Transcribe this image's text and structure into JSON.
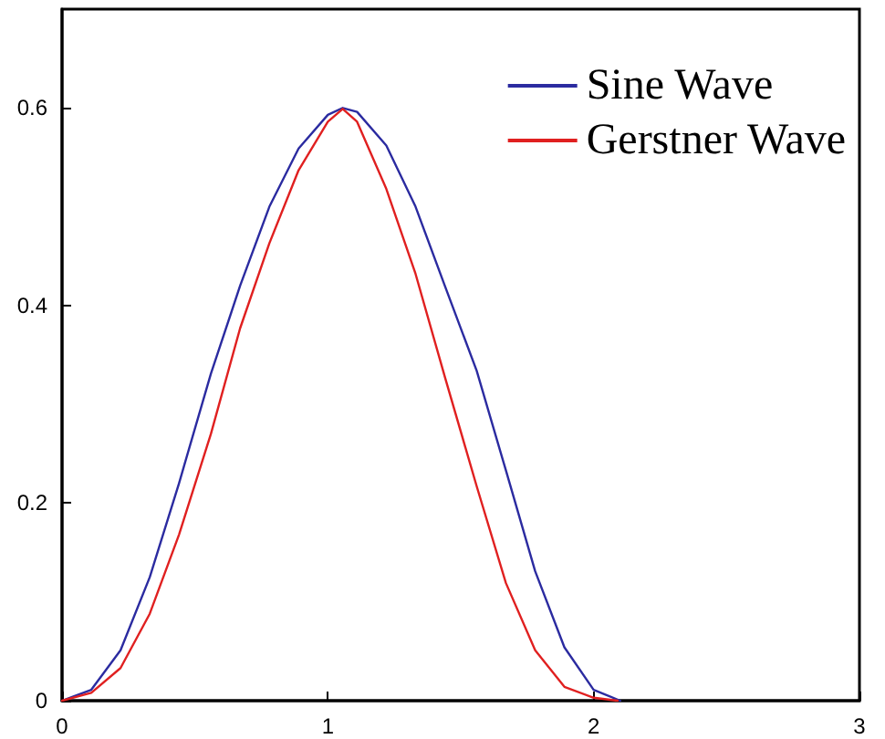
{
  "chart_data": {
    "type": "line",
    "xlim": [
      0,
      3
    ],
    "xticks": [
      0,
      1,
      2,
      3
    ],
    "ylim": [
      0,
      0.7
    ],
    "yticks": [
      0,
      0.2,
      0.4,
      0.6
    ],
    "grid": false,
    "legend": "top right",
    "marker": "none",
    "line_style": "solid",
    "series": [
      {
        "name": "Sine Wave",
        "color": "#2b2ba0",
        "x": [
          0,
          0.11,
          0.22,
          0.33,
          0.44,
          0.56,
          0.67,
          0.78,
          0.89,
          1.0,
          1.056,
          1.11,
          1.22,
          1.33,
          1.44,
          1.56,
          1.67,
          1.78,
          1.89,
          2.0,
          2.1
        ],
        "values": [
          0,
          0.011,
          0.051,
          0.125,
          0.22,
          0.331,
          0.42,
          0.5,
          0.559,
          0.593,
          0.6,
          0.596,
          0.562,
          0.5,
          0.42,
          0.334,
          0.233,
          0.131,
          0.054,
          0.011,
          0
        ]
      },
      {
        "name": "Gerstner Wave",
        "color": "#e02020",
        "x": [
          0,
          0.11,
          0.22,
          0.33,
          0.44,
          0.56,
          0.67,
          0.78,
          0.89,
          1.0,
          1.056,
          1.11,
          1.22,
          1.33,
          1.44,
          1.56,
          1.67,
          1.78,
          1.89,
          2.0,
          2.09
        ],
        "values": [
          0,
          0.008,
          0.033,
          0.088,
          0.168,
          0.27,
          0.377,
          0.463,
          0.537,
          0.586,
          0.599,
          0.586,
          0.518,
          0.432,
          0.328,
          0.217,
          0.119,
          0.051,
          0.014,
          0.003,
          0
        ]
      }
    ]
  }
}
